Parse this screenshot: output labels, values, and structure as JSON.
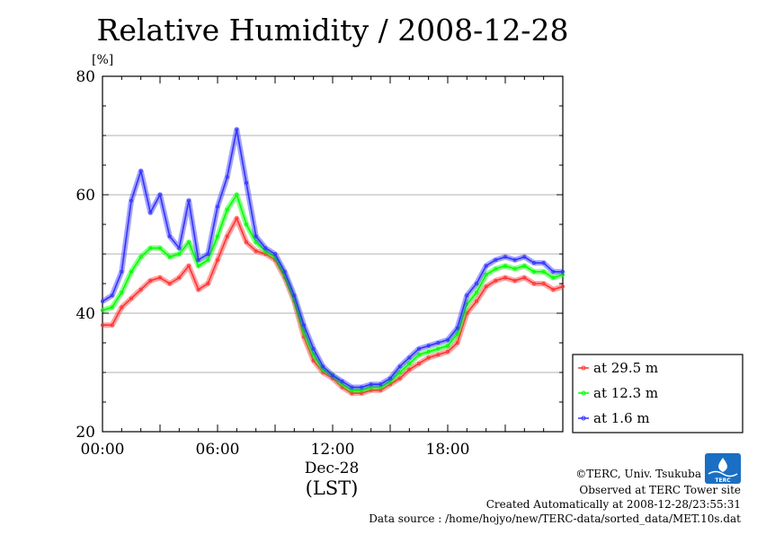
{
  "chart_data": {
    "type": "line",
    "title": "Relative Humidity / 2008-12-28",
    "ylabel": "[%]",
    "xlabel": "(LST)",
    "date_label": "Dec-28",
    "x_unit": "hours",
    "xlim": [
      0,
      24
    ],
    "ylim": [
      20,
      80
    ],
    "yticks": [
      20,
      40,
      60,
      80
    ],
    "xticks": [
      {
        "value": 0,
        "label": "00:00"
      },
      {
        "value": 6,
        "label": "06:00"
      },
      {
        "value": 12,
        "label": "12:00"
      },
      {
        "value": 18,
        "label": "18:00"
      }
    ],
    "grid": "horizontal",
    "legend_position": "right",
    "series": [
      {
        "name": "at 29.5 m",
        "color": "#ff3333",
        "x": [
          0,
          0.5,
          1,
          1.5,
          2,
          2.5,
          3,
          3.5,
          4,
          4.5,
          5,
          5.5,
          6,
          6.5,
          7,
          7.5,
          8,
          8.5,
          9,
          9.5,
          10,
          10.5,
          11,
          11.5,
          12,
          12.5,
          13,
          13.5,
          14,
          14.5,
          15,
          15.5,
          16,
          16.5,
          17,
          17.5,
          18,
          18.5,
          19,
          19.5,
          20,
          20.5,
          21,
          21.5,
          22,
          22.5,
          23,
          23.5,
          24
        ],
        "y": [
          38,
          38,
          41,
          42.5,
          44,
          45.5,
          46,
          45,
          46,
          48,
          44,
          45,
          49,
          53,
          56,
          52,
          50.5,
          50,
          49,
          46,
          42,
          36,
          32,
          30,
          29,
          27.5,
          26.5,
          26.5,
          27,
          27,
          28,
          29,
          30.5,
          31.5,
          32.5,
          33,
          33.5,
          35,
          40,
          42,
          44.5,
          45.5,
          46,
          45.5,
          46,
          45,
          45,
          44,
          44.5
        ]
      },
      {
        "name": "at 12.3 m",
        "color": "#00ff00",
        "x": [
          0,
          0.5,
          1,
          1.5,
          2,
          2.5,
          3,
          3.5,
          4,
          4.5,
          5,
          5.5,
          6,
          6.5,
          7,
          7.5,
          8,
          8.5,
          9,
          9.5,
          10,
          10.5,
          11,
          11.5,
          12,
          12.5,
          13,
          13.5,
          14,
          14.5,
          15,
          15.5,
          16,
          16.5,
          17,
          17.5,
          18,
          18.5,
          19,
          19.5,
          20,
          20.5,
          21,
          21.5,
          22,
          22.5,
          23,
          23.5,
          24
        ],
        "y": [
          40.5,
          41,
          43.5,
          47,
          49.5,
          51,
          51,
          49.5,
          50,
          52,
          48,
          49,
          53,
          57.5,
          60,
          55,
          52,
          50.5,
          49.5,
          46.5,
          42.5,
          37,
          33,
          30.5,
          29.5,
          28,
          27,
          27,
          27.5,
          27.5,
          28.5,
          30,
          31.5,
          33,
          33.5,
          34,
          34.5,
          36.5,
          41.5,
          43.5,
          46.5,
          47.5,
          48,
          47.5,
          48,
          47,
          47,
          46,
          46.5
        ]
      },
      {
        "name": "at 1.6 m",
        "color": "#3333ff",
        "x": [
          0,
          0.5,
          1,
          1.5,
          2,
          2.5,
          3,
          3.5,
          4,
          4.5,
          5,
          5.5,
          6,
          6.5,
          7,
          7.5,
          8,
          8.5,
          9,
          9.5,
          10,
          10.5,
          11,
          11.5,
          12,
          12.5,
          13,
          13.5,
          14,
          14.5,
          15,
          15.5,
          16,
          16.5,
          17,
          17.5,
          18,
          18.5,
          19,
          19.5,
          20,
          20.5,
          21,
          21.5,
          22,
          22.5,
          23,
          23.5,
          24
        ],
        "y": [
          42,
          43,
          47,
          59,
          64,
          57,
          60,
          53,
          51,
          59,
          49,
          50,
          58,
          63,
          71,
          62,
          53,
          51,
          50,
          47,
          43,
          38,
          34,
          31,
          29.5,
          28.5,
          27.5,
          27.5,
          28,
          28,
          29,
          31,
          32.5,
          34,
          34.5,
          35,
          35.5,
          37.5,
          43,
          45,
          48,
          49,
          49.5,
          49,
          49.5,
          48.5,
          48.5,
          47,
          47
        ]
      }
    ]
  },
  "credits": {
    "copyright": "©TERC, Univ. Tsukuba",
    "observed": "Observed at TERC Tower site",
    "created": "Created Automatically at 2008-12-28/23:55:31",
    "source": "Data source : /home/hojyo/new/TERC-data/sorted_data/MET.10s.dat"
  },
  "logo": {
    "text": "TERC",
    "color": "#1a6fc4"
  }
}
